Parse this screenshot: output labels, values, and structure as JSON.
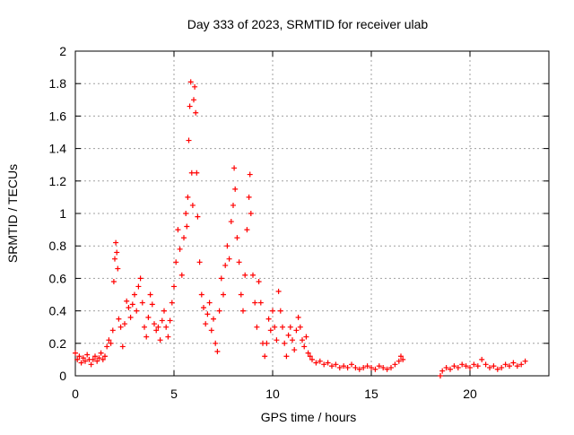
{
  "chart_data": {
    "type": "scatter",
    "title": "Day 333 of 2023, SRMTID for receiver ulab",
    "xlabel": "GPS time / hours",
    "ylabel": "SRMTID / TECUs",
    "xlim": [
      0,
      24
    ],
    "ylim": [
      0,
      2
    ],
    "xticks": [
      0,
      5,
      10,
      15,
      20
    ],
    "xtick_labels": [
      "0",
      "5",
      "10",
      "15",
      "20"
    ],
    "yticks": [
      0,
      0.2,
      0.4,
      0.6,
      0.8,
      1,
      1.2,
      1.4,
      1.6,
      1.8,
      2
    ],
    "ytick_labels": [
      "0",
      "0.2",
      "0.4",
      "0.6",
      "0.8",
      "1",
      "1.2",
      "1.4",
      "1.6",
      "1.8",
      "2"
    ],
    "grid": true,
    "marker": "+",
    "color": "#ff0000",
    "series": [
      {
        "name": "SRMTID",
        "points": [
          [
            0.0,
            0.14
          ],
          [
            0.1,
            0.1
          ],
          [
            0.2,
            0.12
          ],
          [
            0.3,
            0.08
          ],
          [
            0.4,
            0.11
          ],
          [
            0.5,
            0.09
          ],
          [
            0.6,
            0.13
          ],
          [
            0.7,
            0.1
          ],
          [
            0.8,
            0.07
          ],
          [
            0.9,
            0.1
          ],
          [
            1.0,
            0.12
          ],
          [
            1.1,
            0.09
          ],
          [
            1.2,
            0.11
          ],
          [
            1.3,
            0.14
          ],
          [
            1.4,
            0.1
          ],
          [
            1.5,
            0.12
          ],
          [
            1.6,
            0.18
          ],
          [
            1.7,
            0.22
          ],
          [
            1.8,
            0.2
          ],
          [
            1.9,
            0.28
          ],
          [
            1.95,
            0.58
          ],
          [
            2.0,
            0.72
          ],
          [
            2.05,
            0.82
          ],
          [
            2.1,
            0.76
          ],
          [
            2.15,
            0.66
          ],
          [
            2.2,
            0.35
          ],
          [
            2.3,
            0.3
          ],
          [
            2.4,
            0.18
          ],
          [
            2.5,
            0.32
          ],
          [
            2.6,
            0.46
          ],
          [
            2.7,
            0.42
          ],
          [
            2.8,
            0.36
          ],
          [
            2.9,
            0.44
          ],
          [
            3.0,
            0.5
          ],
          [
            3.1,
            0.4
          ],
          [
            3.2,
            0.55
          ],
          [
            3.3,
            0.6
          ],
          [
            3.4,
            0.45
          ],
          [
            3.5,
            0.3
          ],
          [
            3.6,
            0.24
          ],
          [
            3.7,
            0.36
          ],
          [
            3.8,
            0.5
          ],
          [
            3.9,
            0.44
          ],
          [
            4.0,
            0.32
          ],
          [
            4.1,
            0.28
          ],
          [
            4.2,
            0.3
          ],
          [
            4.3,
            0.22
          ],
          [
            4.4,
            0.34
          ],
          [
            4.5,
            0.4
          ],
          [
            4.6,
            0.3
          ],
          [
            4.7,
            0.24
          ],
          [
            4.8,
            0.34
          ],
          [
            4.9,
            0.45
          ],
          [
            5.0,
            0.55
          ],
          [
            5.1,
            0.7
          ],
          [
            5.2,
            0.9
          ],
          [
            5.3,
            0.78
          ],
          [
            5.4,
            0.62
          ],
          [
            5.5,
            0.85
          ],
          [
            5.6,
            1.0
          ],
          [
            5.65,
            0.92
          ],
          [
            5.7,
            1.1
          ],
          [
            5.75,
            1.45
          ],
          [
            5.8,
            1.66
          ],
          [
            5.85,
            1.81
          ],
          [
            5.9,
            1.25
          ],
          [
            5.95,
            1.05
          ],
          [
            6.0,
            1.7
          ],
          [
            6.05,
            1.78
          ],
          [
            6.1,
            1.62
          ],
          [
            6.15,
            1.25
          ],
          [
            6.2,
            0.98
          ],
          [
            6.3,
            0.7
          ],
          [
            6.4,
            0.5
          ],
          [
            6.5,
            0.42
          ],
          [
            6.6,
            0.32
          ],
          [
            6.7,
            0.38
          ],
          [
            6.8,
            0.45
          ],
          [
            6.9,
            0.28
          ],
          [
            7.0,
            0.35
          ],
          [
            7.1,
            0.2
          ],
          [
            7.2,
            0.15
          ],
          [
            7.3,
            0.4
          ],
          [
            7.4,
            0.6
          ],
          [
            7.5,
            0.5
          ],
          [
            7.6,
            0.68
          ],
          [
            7.7,
            0.8
          ],
          [
            7.8,
            0.72
          ],
          [
            7.9,
            0.95
          ],
          [
            8.0,
            1.05
          ],
          [
            8.05,
            1.28
          ],
          [
            8.1,
            1.15
          ],
          [
            8.2,
            0.85
          ],
          [
            8.3,
            0.7
          ],
          [
            8.4,
            0.5
          ],
          [
            8.5,
            0.4
          ],
          [
            8.6,
            0.62
          ],
          [
            8.7,
            0.9
          ],
          [
            8.8,
            1.1
          ],
          [
            8.85,
            1.24
          ],
          [
            8.9,
            1.0
          ],
          [
            9.0,
            0.62
          ],
          [
            9.1,
            0.45
          ],
          [
            9.2,
            0.3
          ],
          [
            9.3,
            0.58
          ],
          [
            9.4,
            0.45
          ],
          [
            9.5,
            0.2
          ],
          [
            9.6,
            0.12
          ],
          [
            9.7,
            0.2
          ],
          [
            9.8,
            0.35
          ],
          [
            9.9,
            0.28
          ],
          [
            10.0,
            0.4
          ],
          [
            10.1,
            0.3
          ],
          [
            10.2,
            0.22
          ],
          [
            10.3,
            0.52
          ],
          [
            10.4,
            0.4
          ],
          [
            10.5,
            0.3
          ],
          [
            10.6,
            0.2
          ],
          [
            10.7,
            0.12
          ],
          [
            10.8,
            0.25
          ],
          [
            10.9,
            0.3
          ],
          [
            11.0,
            0.22
          ],
          [
            11.1,
            0.16
          ],
          [
            11.2,
            0.28
          ],
          [
            11.3,
            0.36
          ],
          [
            11.4,
            0.3
          ],
          [
            11.5,
            0.22
          ],
          [
            11.6,
            0.18
          ],
          [
            11.7,
            0.24
          ],
          [
            11.8,
            0.14
          ],
          [
            11.9,
            0.12
          ],
          [
            12.0,
            0.1
          ],
          [
            12.2,
            0.08
          ],
          [
            12.4,
            0.09
          ],
          [
            12.6,
            0.07
          ],
          [
            12.8,
            0.08
          ],
          [
            13.0,
            0.06
          ],
          [
            13.2,
            0.07
          ],
          [
            13.4,
            0.05
          ],
          [
            13.6,
            0.06
          ],
          [
            13.8,
            0.05
          ],
          [
            14.0,
            0.07
          ],
          [
            14.2,
            0.05
          ],
          [
            14.4,
            0.04
          ],
          [
            14.6,
            0.05
          ],
          [
            14.8,
            0.06
          ],
          [
            15.0,
            0.05
          ],
          [
            15.2,
            0.04
          ],
          [
            15.4,
            0.06
          ],
          [
            15.6,
            0.05
          ],
          [
            15.8,
            0.04
          ],
          [
            16.0,
            0.05
          ],
          [
            16.2,
            0.07
          ],
          [
            16.4,
            0.09
          ],
          [
            16.5,
            0.12
          ],
          [
            16.6,
            0.1
          ],
          [
            18.5,
            0.0
          ],
          [
            18.6,
            0.03
          ],
          [
            18.8,
            0.05
          ],
          [
            19.0,
            0.04
          ],
          [
            19.2,
            0.06
          ],
          [
            19.4,
            0.05
          ],
          [
            19.6,
            0.07
          ],
          [
            19.8,
            0.06
          ],
          [
            20.0,
            0.05
          ],
          [
            20.2,
            0.07
          ],
          [
            20.4,
            0.06
          ],
          [
            20.6,
            0.1
          ],
          [
            20.8,
            0.07
          ],
          [
            21.0,
            0.05
          ],
          [
            21.2,
            0.06
          ],
          [
            21.4,
            0.04
          ],
          [
            21.6,
            0.05
          ],
          [
            21.8,
            0.07
          ],
          [
            22.0,
            0.06
          ],
          [
            22.2,
            0.08
          ],
          [
            22.4,
            0.06
          ],
          [
            22.6,
            0.07
          ],
          [
            22.8,
            0.09
          ]
        ]
      }
    ]
  }
}
